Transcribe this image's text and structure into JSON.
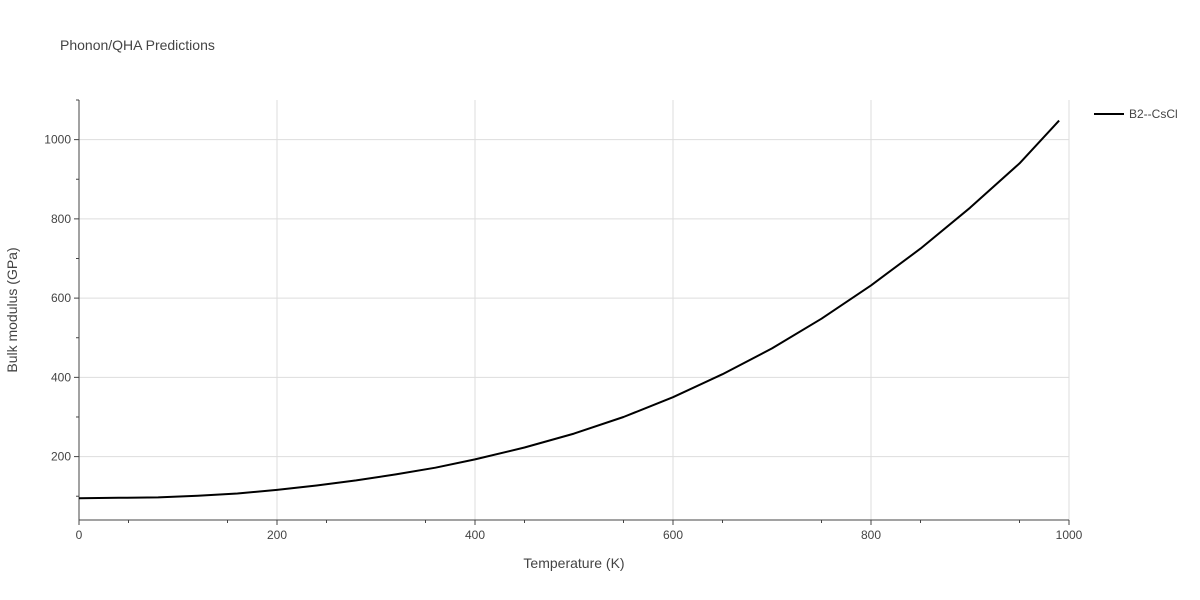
{
  "chart_data": {
    "type": "line",
    "title": "Phonon/QHA Predictions",
    "xlabel": "Temperature (K)",
    "ylabel": "Bulk modulus (GPa)",
    "xlim": [
      0,
      1000
    ],
    "ylim": [
      40,
      1100
    ],
    "xticks": [
      0,
      200,
      400,
      600,
      800,
      1000
    ],
    "yticks": [
      200,
      400,
      600,
      800,
      1000
    ],
    "grid": true,
    "legend_position": "top-right",
    "series": [
      {
        "name": "B2--CsCl",
        "color": "#000000",
        "x": [
          0,
          40,
          80,
          120,
          160,
          200,
          240,
          280,
          320,
          360,
          400,
          450,
          500,
          550,
          600,
          650,
          700,
          750,
          800,
          850,
          900,
          950,
          990
        ],
        "y": [
          95,
          96,
          97,
          101,
          107,
          116,
          127,
          140,
          155,
          172,
          193,
          223,
          258,
          300,
          350,
          408,
          473,
          548,
          632,
          725,
          828,
          940,
          1048
        ]
      }
    ]
  }
}
